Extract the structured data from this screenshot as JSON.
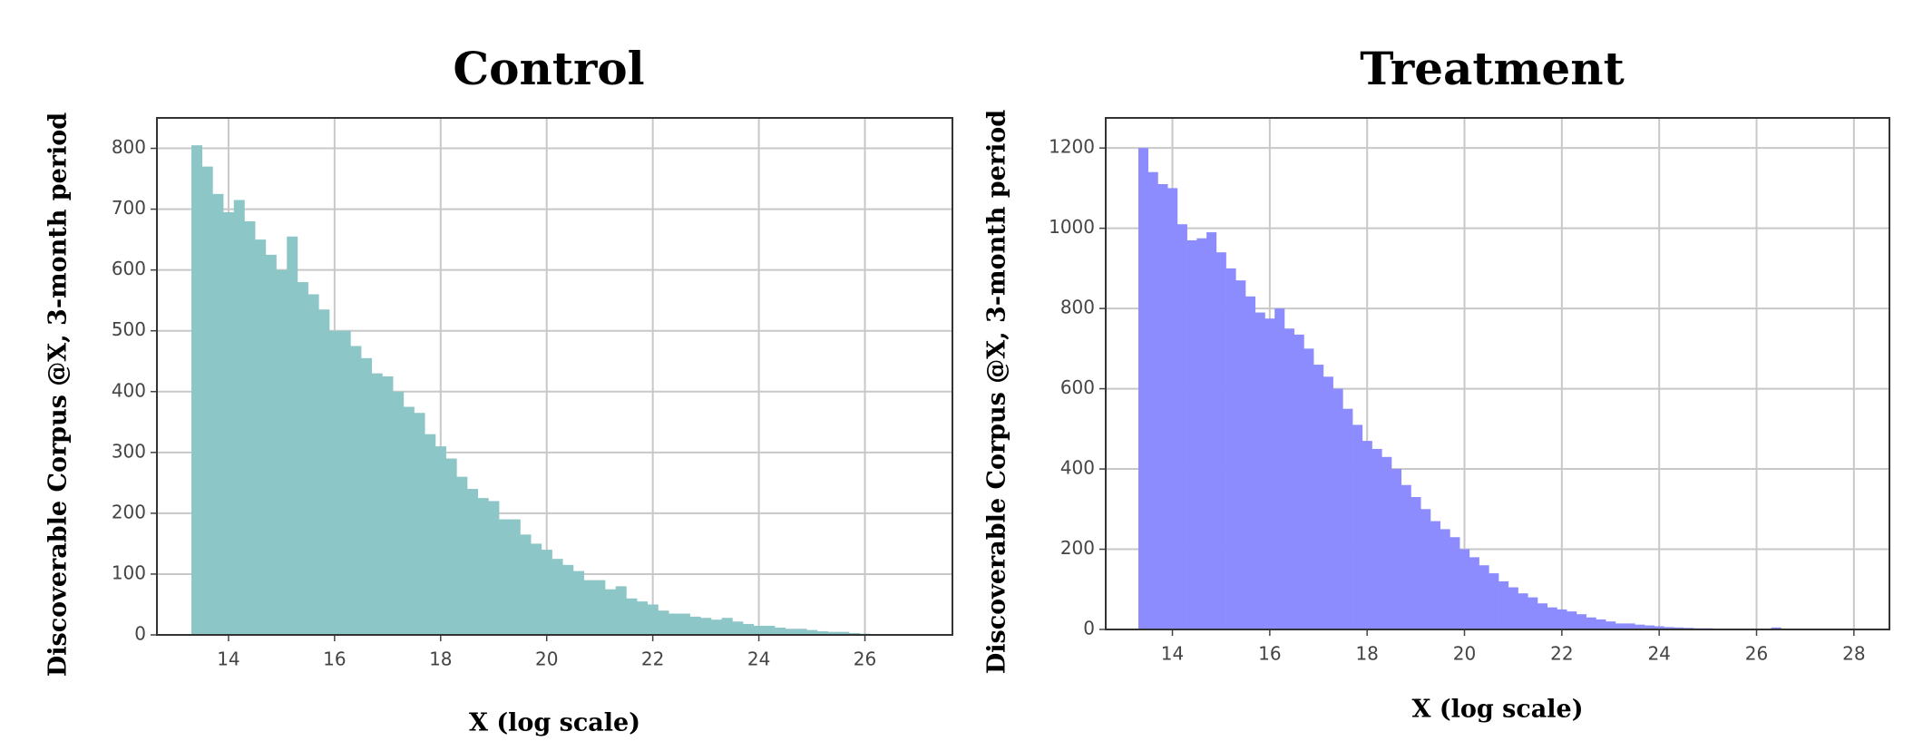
{
  "chart_data": [
    {
      "type": "histogram",
      "title": "Control",
      "x_label": "X (log scale)",
      "y_label": "Discoverable Corpus @X, 3-month  period",
      "bins": [
        13.3,
        13.5,
        13.7,
        13.9,
        14.1,
        14.3,
        14.5,
        14.7,
        14.9,
        15.1,
        15.3,
        15.5,
        15.7,
        15.9,
        16.1,
        16.3,
        16.5,
        16.7,
        16.9,
        17.1,
        17.3,
        17.5,
        17.7,
        17.9,
        18.1,
        18.3,
        18.5,
        18.7,
        18.9,
        19.1,
        19.3,
        19.5,
        19.7,
        19.9,
        20.1,
        20.3,
        20.5,
        20.7,
        20.9,
        21.1,
        21.3,
        21.5,
        21.7,
        21.9,
        22.1,
        22.3,
        22.5,
        22.7,
        22.9,
        23.1,
        23.3,
        23.5,
        23.7,
        23.9,
        24.1,
        24.3,
        24.5,
        24.7,
        24.9,
        25.1,
        25.3,
        25.5,
        25.7,
        25.9,
        26.1
      ],
      "values": [
        805,
        770,
        725,
        695,
        715,
        680,
        650,
        625,
        600,
        655,
        580,
        560,
        535,
        500,
        500,
        475,
        455,
        430,
        425,
        400,
        375,
        365,
        330,
        310,
        290,
        260,
        240,
        225,
        220,
        190,
        190,
        165,
        150,
        140,
        125,
        115,
        105,
        90,
        90,
        75,
        80,
        60,
        55,
        50,
        40,
        35,
        35,
        30,
        28,
        25,
        28,
        22,
        18,
        15,
        15,
        12,
        10,
        10,
        8,
        6,
        5,
        5,
        3,
        2
      ],
      "color": "#8cc6c6",
      "xlim": [
        12.65,
        27.65
      ],
      "ylim": [
        0,
        850
      ],
      "xticks": [
        14,
        16,
        18,
        20,
        22,
        24,
        26
      ],
      "yticks": [
        0,
        100,
        200,
        300,
        400,
        500,
        600,
        700,
        800
      ],
      "grid": true
    },
    {
      "type": "histogram",
      "title": "Treatment",
      "x_label": "X (log scale)",
      "y_label": "Discoverable Corpus @X, 3-month  period",
      "bins": [
        13.3,
        13.5,
        13.7,
        13.9,
        14.1,
        14.3,
        14.5,
        14.7,
        14.9,
        15.1,
        15.3,
        15.5,
        15.7,
        15.9,
        16.1,
        16.3,
        16.5,
        16.7,
        16.9,
        17.1,
        17.3,
        17.5,
        17.7,
        17.9,
        18.1,
        18.3,
        18.5,
        18.7,
        18.9,
        19.1,
        19.3,
        19.5,
        19.7,
        19.9,
        20.1,
        20.3,
        20.5,
        20.7,
        20.9,
        21.1,
        21.3,
        21.5,
        21.7,
        21.9,
        22.1,
        22.3,
        22.5,
        22.7,
        22.9,
        23.1,
        23.3,
        23.5,
        23.7,
        23.9,
        24.1,
        24.3,
        24.5,
        24.7,
        24.9,
        25.1,
        25.3,
        25.5,
        25.7,
        25.9,
        26.1,
        26.3,
        26.5,
        26.7,
        26.9,
        27.1
      ],
      "values": [
        1200,
        1140,
        1110,
        1100,
        1010,
        970,
        975,
        990,
        940,
        900,
        870,
        830,
        790,
        775,
        800,
        750,
        735,
        700,
        660,
        630,
        600,
        550,
        510,
        470,
        450,
        430,
        400,
        360,
        330,
        300,
        270,
        250,
        230,
        200,
        180,
        160,
        140,
        120,
        105,
        90,
        80,
        65,
        55,
        50,
        45,
        38,
        30,
        25,
        20,
        15,
        15,
        12,
        10,
        8,
        6,
        5,
        4,
        3,
        3,
        2,
        2,
        1,
        1,
        0,
        0,
        5,
        0,
        0,
        2
      ],
      "color": "#8c8cff",
      "xlim": [
        12.63,
        28.73
      ],
      "ylim": [
        0,
        1275
      ],
      "xticks": [
        14,
        16,
        18,
        20,
        22,
        24,
        26,
        28
      ],
      "yticks": [
        0,
        200,
        400,
        600,
        800,
        1000,
        1200
      ],
      "grid": true
    }
  ]
}
